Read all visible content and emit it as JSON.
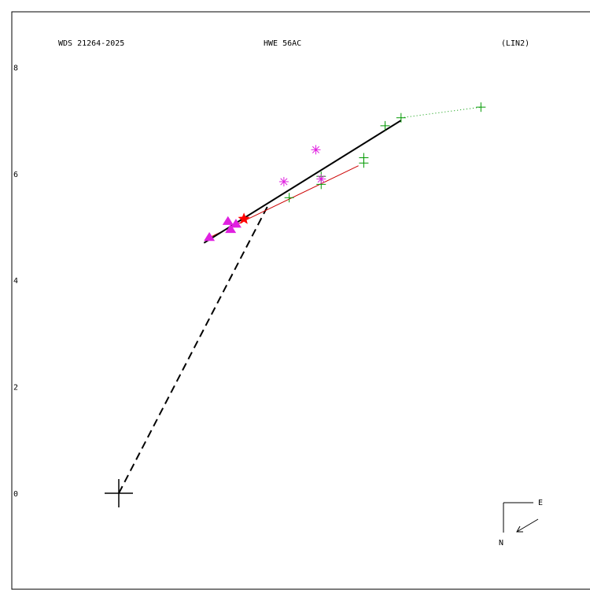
{
  "chart_data": {
    "type": "scatter",
    "title_left": "WDS 21264-2025",
    "title_center": "HWE  56AC",
    "title_right": "(LIN2)",
    "yticks": [
      0,
      2,
      4,
      6,
      8
    ],
    "compass": {
      "east_label": "E",
      "north_label": "N"
    },
    "primary": {
      "x": 0,
      "y": 0
    },
    "colors": {
      "frame": "#000000",
      "fit_line": "#000000",
      "dashed": "#000000",
      "red_line": "#cc0000",
      "green": "#009900",
      "magenta": "#e020e0",
      "red_star": "#ff0000"
    },
    "fit_line": [
      {
        "x": 1.6,
        "y": 4.7
      },
      {
        "x": 5.3,
        "y": 7.0
      }
    ],
    "dashed_line": [
      {
        "x": 0,
        "y": 0
      },
      {
        "x": 2.8,
        "y": 5.4
      }
    ],
    "red_line": [
      {
        "x": 1.7,
        "y": 4.8
      },
      {
        "x": 4.5,
        "y": 6.15
      }
    ],
    "green_plus": [
      {
        "x": 3.2,
        "y": 5.55
      },
      {
        "x": 3.8,
        "y": 5.95
      },
      {
        "x": 3.8,
        "y": 5.8
      },
      {
        "x": 4.6,
        "y": 6.3
      },
      {
        "x": 4.6,
        "y": 6.2
      },
      {
        "x": 5.0,
        "y": 6.9
      },
      {
        "x": 5.3,
        "y": 7.05
      },
      {
        "x": 6.8,
        "y": 7.25
      }
    ],
    "green_dotted": [
      {
        "x": 5.3,
        "y": 7.05
      },
      {
        "x": 6.8,
        "y": 7.25
      }
    ],
    "magenta_asterisk": [
      {
        "x": 3.1,
        "y": 5.85
      },
      {
        "x": 3.7,
        "y": 6.45
      },
      {
        "x": 3.8,
        "y": 5.9
      }
    ],
    "magenta_triangle": [
      {
        "x": 1.7,
        "y": 4.8
      },
      {
        "x": 2.1,
        "y": 4.95
      },
      {
        "x": 2.2,
        "y": 5.05
      },
      {
        "x": 2.05,
        "y": 5.1
      }
    ],
    "red_star_point": {
      "x": 2.35,
      "y": 5.15
    }
  }
}
